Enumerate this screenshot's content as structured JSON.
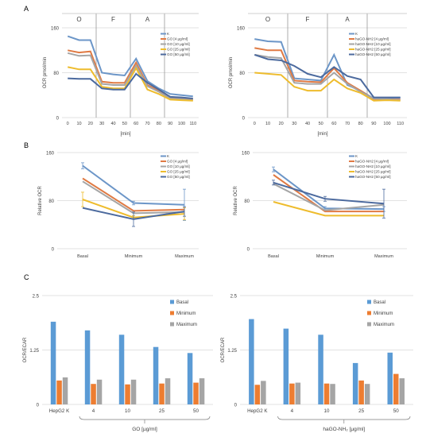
{
  "panel_labels": [
    "A",
    "B",
    "C"
  ],
  "chart_data": [
    {
      "id": "A1",
      "type": "line",
      "panel": "A",
      "title": "",
      "xlabel": "[min]",
      "ylabel": "OCR pmol/min",
      "xlim": [
        -5,
        115
      ],
      "ylim": [
        0,
        160
      ],
      "xticks": [
        0,
        10,
        20,
        30,
        40,
        50,
        60,
        70,
        80,
        90,
        100,
        110
      ],
      "yticks": [
        0,
        80,
        160
      ],
      "phases": [
        {
          "label": "O",
          "from": -5,
          "to": 25
        },
        {
          "label": "F",
          "from": 25,
          "to": 55
        },
        {
          "label": "A",
          "from": 55,
          "to": 85
        }
      ],
      "legend_position": "right",
      "x": [
        0,
        10,
        20,
        30,
        40,
        50,
        60,
        70,
        80,
        90,
        100,
        110
      ],
      "series": [
        {
          "name": "K",
          "color": "#6c96c8",
          "values": [
            145,
            138,
            138,
            80,
            77,
            75,
            105,
            65,
            52,
            42,
            40,
            38
          ]
        },
        {
          "name": "GO [4 µg/ml]",
          "color": "#e07a43",
          "values": [
            120,
            116,
            118,
            64,
            62,
            62,
            98,
            58,
            48,
            35,
            34,
            32
          ]
        },
        {
          "name": "GO [10 µg/ml]",
          "color": "#a5a5a5",
          "values": [
            115,
            110,
            111,
            60,
            58,
            58,
            93,
            56,
            46,
            34,
            33,
            31
          ]
        },
        {
          "name": "GO [25 µg/ml]",
          "color": "#eebc2d",
          "values": [
            90,
            86,
            86,
            55,
            52,
            52,
            88,
            50,
            42,
            32,
            31,
            30
          ]
        },
        {
          "name": "GO [50 µg/ml]",
          "color": "#4c6a9e",
          "values": [
            70,
            69,
            69,
            52,
            50,
            50,
            78,
            62,
            50,
            37,
            36,
            34
          ]
        }
      ]
    },
    {
      "id": "A2",
      "type": "line",
      "panel": "A",
      "title": "",
      "xlabel": "[min]",
      "ylabel": "OCR pmol/min",
      "xlim": [
        -5,
        115
      ],
      "ylim": [
        0,
        160
      ],
      "xticks": [
        0,
        10,
        20,
        30,
        40,
        50,
        60,
        70,
        80,
        90,
        100,
        110
      ],
      "yticks": [
        0,
        80,
        160
      ],
      "phases": [
        {
          "label": "O",
          "from": -5,
          "to": 25
        },
        {
          "label": "F",
          "from": 25,
          "to": 55
        },
        {
          "label": "A",
          "from": 55,
          "to": 85
        }
      ],
      "legend_position": "right",
      "x": [
        0,
        10,
        20,
        30,
        40,
        50,
        60,
        70,
        80,
        90,
        100,
        110
      ],
      "series": [
        {
          "name": "K",
          "color": "#6c96c8",
          "values": [
            140,
            136,
            135,
            70,
            68,
            66,
            112,
            58,
            48,
            34,
            35,
            35
          ]
        },
        {
          "name": "haGO-NH2 [4 µg/ml]",
          "color": "#e07a43",
          "values": [
            124,
            120,
            120,
            66,
            64,
            63,
            88,
            62,
            48,
            33,
            33,
            32
          ]
        },
        {
          "name": "haGO-NH2 [10 µg/ml]",
          "color": "#a5a5a5",
          "values": [
            112,
            108,
            106,
            62,
            60,
            60,
            80,
            60,
            46,
            34,
            33,
            31
          ]
        },
        {
          "name": "haGO-NH2 [25 µg/ml]",
          "color": "#eebc2d",
          "values": [
            80,
            78,
            76,
            55,
            48,
            48,
            68,
            52,
            44,
            30,
            31,
            30
          ]
        },
        {
          "name": "haGO-NH2 [50 µg/ml]",
          "color": "#4c6a9e",
          "values": [
            112,
            104,
            102,
            92,
            78,
            72,
            90,
            74,
            68,
            36,
            36,
            36
          ]
        }
      ]
    },
    {
      "id": "B1",
      "type": "line",
      "panel": "B",
      "title": "",
      "xlabel": "",
      "ylabel": "Relative OCR",
      "ylim": [
        0,
        160
      ],
      "yticks": [
        0,
        80,
        160
      ],
      "categories": [
        "Basal",
        "Minimum",
        "Maximum"
      ],
      "legend_position": "right",
      "series": [
        {
          "name": "K",
          "color": "#6c96c8",
          "values": [
            138,
            76,
            73
          ],
          "errors": [
            5,
            3,
            26
          ]
        },
        {
          "name": "GO [4 µg/ml]",
          "color": "#e07a43",
          "values": [
            117,
            63,
            65
          ]
        },
        {
          "name": "GO [10 µg/ml]",
          "color": "#a5a5a5",
          "values": [
            112,
            59,
            61
          ]
        },
        {
          "name": "GO [25 µg/ml]",
          "color": "#eebc2d",
          "values": [
            82,
            52,
            58
          ],
          "errors": [
            12,
            3,
            10
          ]
        },
        {
          "name": "GO [50 µg/ml]",
          "color": "#4c6a9e",
          "values": [
            68,
            49,
            62
          ],
          "errors": [
            0,
            12,
            8
          ]
        }
      ]
    },
    {
      "id": "B2",
      "type": "line",
      "panel": "B",
      "title": "",
      "xlabel": "",
      "ylabel": "Relative OCR",
      "ylim": [
        0,
        160
      ],
      "yticks": [
        0,
        80,
        160
      ],
      "categories": [
        "Basal",
        "Minimum",
        "Maximum"
      ],
      "legend_position": "right",
      "series": [
        {
          "name": "K",
          "color": "#6c96c8",
          "values": [
            132,
            67,
            66
          ],
          "errors": [
            4,
            3,
            4
          ]
        },
        {
          "name": "haGO-NH2 [4 µg/ml]",
          "color": "#e07a43",
          "values": [
            123,
            62,
            62
          ]
        },
        {
          "name": "haGO-NH2 [10 µg/ml]",
          "color": "#a5a5a5",
          "values": [
            108,
            64,
            73
          ]
        },
        {
          "name": "haGO-NH2 [25 µg/ml]",
          "color": "#eebc2d",
          "values": [
            78,
            55,
            55
          ]
        },
        {
          "name": "haGO-NH2 [50 µg/ml]",
          "color": "#4c6a9e",
          "values": [
            110,
            83,
            75
          ],
          "errors": [
            4,
            4,
            24
          ]
        }
      ]
    },
    {
      "id": "C1",
      "type": "bar",
      "panel": "C",
      "title": "",
      "xlabel": "GO [µg/ml]",
      "ylabel": "OCR/ECAR",
      "ylim": [
        0,
        2.5
      ],
      "yticks": [
        0,
        1.25,
        2.5
      ],
      "ytick_labels": [
        "0",
        "1.25",
        "2.5"
      ],
      "categories": [
        "HepG2 K",
        "4",
        "10",
        "25",
        "50"
      ],
      "legend_position": "right",
      "series": [
        {
          "name": "Basal",
          "color": "#5b9bd5",
          "values": [
            1.9,
            1.7,
            1.6,
            1.32,
            1.18
          ]
        },
        {
          "name": "Minimum",
          "color": "#ed7d31",
          "values": [
            0.55,
            0.47,
            0.46,
            0.48,
            0.5
          ]
        },
        {
          "name": "Maximum",
          "color": "#a5a5a5",
          "values": [
            0.62,
            0.57,
            0.57,
            0.6,
            0.6
          ]
        }
      ]
    },
    {
      "id": "C2",
      "type": "bar",
      "panel": "C",
      "title": "",
      "xlabel": "haGO-NH₂ [µg/ml]",
      "ylabel": "OCR/ECAR",
      "ylim": [
        0,
        2.5
      ],
      "yticks": [
        0,
        1.25,
        2.5
      ],
      "ytick_labels": [
        "0",
        "1.25",
        "2.5"
      ],
      "categories": [
        "HepG2 K",
        "4",
        "10",
        "25",
        "50"
      ],
      "legend_position": "right",
      "series": [
        {
          "name": "Basal",
          "color": "#5b9bd5",
          "values": [
            1.96,
            1.74,
            1.6,
            0.95,
            1.19
          ]
        },
        {
          "name": "Minimum",
          "color": "#ed7d31",
          "values": [
            0.45,
            0.48,
            0.48,
            0.55,
            0.7
          ]
        },
        {
          "name": "Maximum",
          "color": "#a5a5a5",
          "values": [
            0.54,
            0.5,
            0.47,
            0.47,
            0.6
          ]
        }
      ]
    }
  ]
}
